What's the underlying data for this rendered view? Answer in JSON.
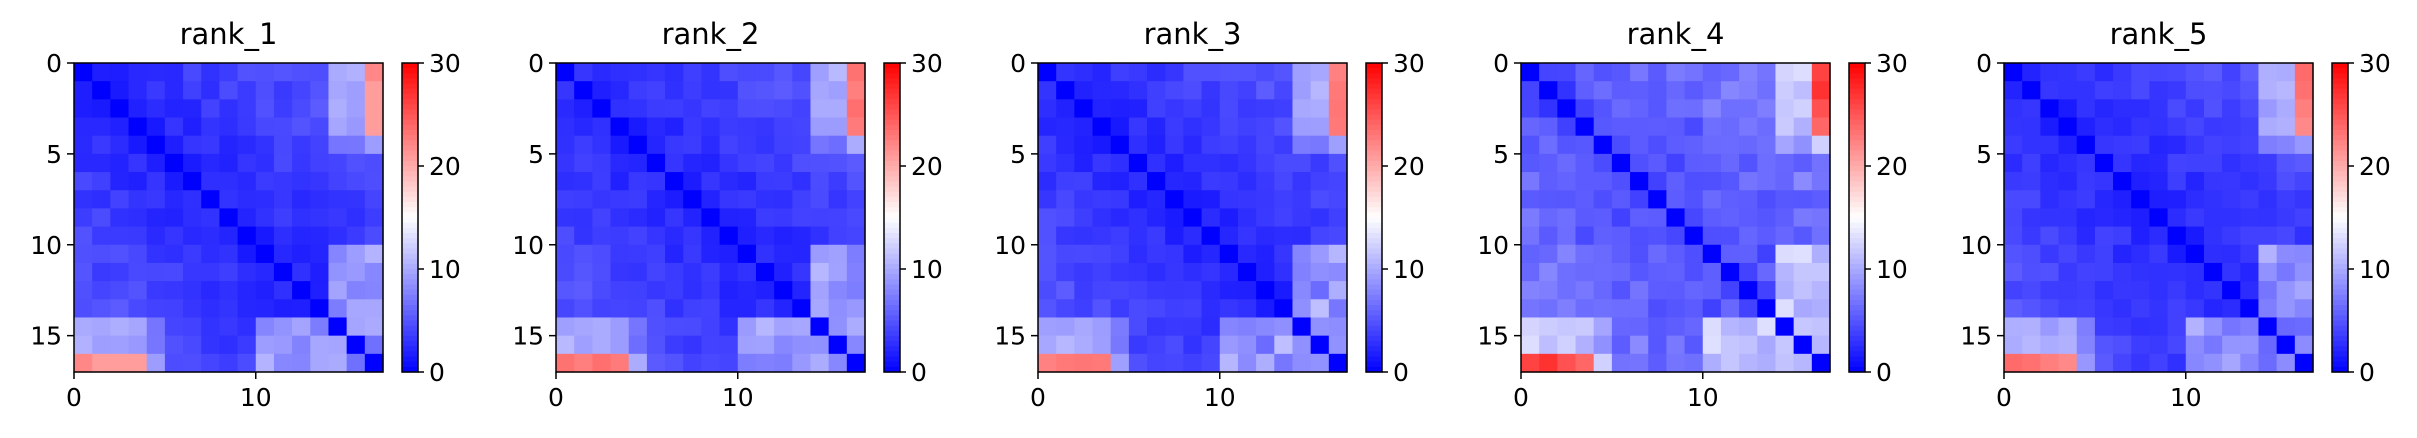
{
  "chart_data": [
    {
      "type": "heatmap",
      "title": "rank_1",
      "size": 17,
      "variant": 0,
      "xticks": [
        0,
        10
      ],
      "yticks": [
        0,
        5,
        10,
        15
      ],
      "colorbar": {
        "min": 0,
        "max": 30,
        "ticks": [
          0,
          10,
          20,
          30
        ],
        "colormap": "bwr"
      }
    },
    {
      "type": "heatmap",
      "title": "rank_2",
      "size": 17,
      "variant": 1,
      "xticks": [
        0,
        10
      ],
      "yticks": [
        0,
        5,
        10,
        15
      ],
      "colorbar": {
        "min": 0,
        "max": 30,
        "ticks": [
          0,
          10,
          20,
          30
        ],
        "colormap": "bwr"
      }
    },
    {
      "type": "heatmap",
      "title": "rank_3",
      "size": 17,
      "variant": 2,
      "xticks": [
        0,
        10
      ],
      "yticks": [
        0,
        5,
        10,
        15
      ],
      "colorbar": {
        "min": 0,
        "max": 30,
        "ticks": [
          0,
          10,
          20,
          30
        ],
        "colormap": "bwr"
      }
    },
    {
      "type": "heatmap",
      "title": "rank_4",
      "size": 17,
      "variant": 3,
      "xticks": [
        0,
        10
      ],
      "yticks": [
        0,
        5,
        10,
        15
      ],
      "colorbar": {
        "min": 0,
        "max": 30,
        "ticks": [
          0,
          10,
          20,
          30
        ],
        "colormap": "bwr"
      }
    },
    {
      "type": "heatmap",
      "title": "rank_5",
      "size": 17,
      "variant": 4,
      "xticks": [
        0,
        10
      ],
      "yticks": [
        0,
        5,
        10,
        15
      ],
      "colorbar": {
        "min": 0,
        "max": 30,
        "ticks": [
          0,
          10,
          20,
          30
        ],
        "colormap": "bwr"
      }
    }
  ],
  "colors": {
    "low": "#0000ff",
    "mid": "#ffffff",
    "high": "#ff0000"
  }
}
